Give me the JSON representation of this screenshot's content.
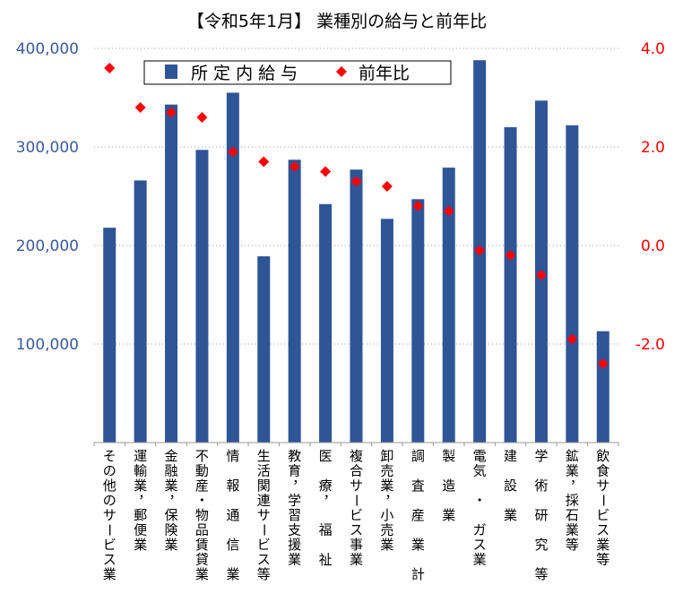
{
  "chart_data": {
    "type": "bar",
    "title": "【令和5年1月】 業種別の給与と前年比",
    "categories": [
      "その他のサービス業",
      "運輸業，郵便業",
      "金融業，保険業",
      "不動産・物品賃貸業",
      "情 報 通 信 業",
      "生活関連サービス等",
      "教育，学習支援業",
      "医 療， 福 祉",
      "複合サービス事業",
      "卸売業，小売業",
      "調 査 産 業 計",
      "製　造　業",
      "電気 ・ ガス業",
      "建　設　業",
      "学 術 研 究 等",
      "鉱業，採石業等",
      "飲食サービス業等"
    ],
    "series": [
      {
        "name": "所 定 内 給 与",
        "type": "bar",
        "axis": "left",
        "color": "#2e5596",
        "values": [
          218000,
          266000,
          343000,
          297000,
          355000,
          189000,
          287000,
          242000,
          277000,
          227000,
          247000,
          279000,
          388000,
          320000,
          347000,
          322000,
          113000
        ]
      },
      {
        "name": "前年比",
        "type": "scatter",
        "marker": "diamond",
        "axis": "right",
        "color": "#ff0000",
        "values": [
          3.6,
          2.8,
          2.7,
          2.6,
          1.9,
          1.7,
          1.6,
          1.5,
          1.3,
          1.2,
          0.8,
          0.7,
          -0.1,
          -0.2,
          -0.6,
          -1.9,
          -2.4
        ]
      }
    ],
    "y_left": {
      "ylim": [
        0,
        400000
      ],
      "ticks": [
        100000,
        200000,
        300000,
        400000
      ],
      "tick_labels": [
        "100,000",
        "200,000",
        "300,000",
        "400,000"
      ],
      "color": "#3a5a9a"
    },
    "y_right": {
      "ylim": [
        -4.0,
        4.0
      ],
      "ticks": [
        -2.0,
        0.0,
        2.0,
        4.0
      ],
      "tick_labels": [
        "-2.0",
        "0.0",
        "2.0",
        "4.0"
      ],
      "color": "#ff0000"
    },
    "grid": true,
    "legend_position": "top-left"
  }
}
